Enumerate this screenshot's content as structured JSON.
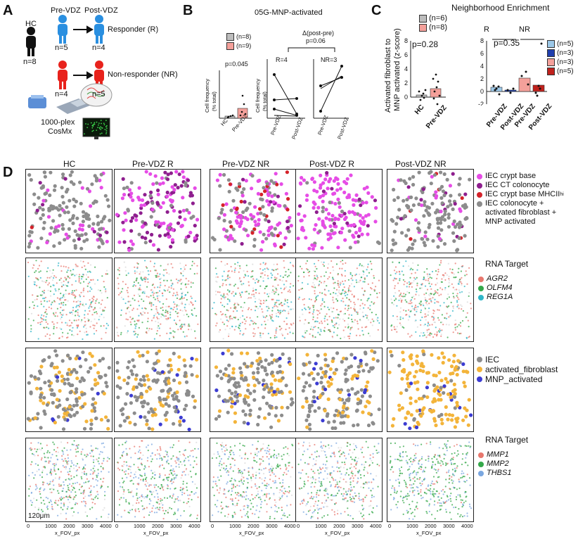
{
  "panelA": {
    "letter": "A",
    "hc": "HC",
    "hc_n": "n=8",
    "pre": "Pre-VDZ",
    "post": "Post-VDZ",
    "pre_r_n": "n=5",
    "post_r_n": "n=4",
    "responder": "Responder (R)",
    "pre_nr_n": "n=4",
    "post_nr_n": "n=5",
    "nonresponder": "Non-responder (NR)",
    "platform1": "1000-plex",
    "platform2": "CosMx"
  },
  "panelB": {
    "letter": "B",
    "title": "05G-MNP-activated",
    "legend": [
      {
        "label": "(n=8)",
        "color": "#bdbdbd"
      },
      {
        "label": "(n=9)",
        "color": "#f4a09a"
      }
    ],
    "pval": "p=0.045",
    "ylabel1": "Cell frequency",
    "ylabel2": "(% total)",
    "delta": "Δ(post-pre)",
    "delta_p": "p=0.06",
    "r_label": "R=4",
    "nr_label": "NR=3",
    "bar_x": [
      "HC",
      "Pre-VDZ"
    ],
    "pair_x": [
      "Pre-VDZ",
      "Post-VDZ"
    ]
  },
  "panelC": {
    "letter": "C",
    "title": "Neighborhood Enrichment",
    "ylabel1": "Activated fibroblast to",
    "ylabel2": "MNP activated (z-score)",
    "legend_left": [
      {
        "label": "(n=6)",
        "color": "#bdbdbd"
      },
      {
        "label": "(n=8)",
        "color": "#f4a09a"
      }
    ],
    "pval_left": "p=0.28",
    "left_x": [
      "HC",
      "Pre-VDZ"
    ],
    "r": "R",
    "nr": "NR",
    "pval_right": "p=0.35",
    "legend_right": [
      {
        "label": "(n=5)",
        "color": "#9cc8e8"
      },
      {
        "label": "(n=3)",
        "color": "#1f3fae"
      },
      {
        "label": "(n=3)",
        "color": "#f4a09a"
      },
      {
        "label": "(n=5)",
        "color": "#c0211c"
      }
    ],
    "right_x": [
      "Pre-VDZ",
      "Post-VDZ",
      "Pre-VDZ",
      "Post-VDZ"
    ],
    "yticks_left": [
      "0",
      "2",
      "4",
      "6",
      "8"
    ],
    "yticks_right": [
      "-2",
      "0",
      "2",
      "4",
      "6",
      "8"
    ]
  },
  "panelD": {
    "letter": "D",
    "columns": [
      "HC",
      "Pre-VDZ R",
      "Pre-VDZ NR",
      "Post-VDZ R",
      "Post-VDZ NR"
    ],
    "legend1": [
      {
        "label": "IEC crypt base",
        "color": "#e64ce6"
      },
      {
        "label": "IEC CT colonocyte",
        "color": "#8e1e8e"
      },
      {
        "label": "IEC crypt base MHCII",
        "sup": "hi",
        "color": "#d4232a"
      },
      {
        "label": "IEC colonocyte +",
        "color": "#8c8c8c"
      },
      {
        "label": "activated fibroblast +",
        "color": ""
      },
      {
        "label": "MNP activated",
        "color": ""
      }
    ],
    "rna1_title": "RNA Target",
    "rna1": [
      {
        "label": "AGR2",
        "color": "#e8776d"
      },
      {
        "label": "OLFM4",
        "color": "#35a84a"
      },
      {
        "label": "REG1A",
        "color": "#2fb6c8"
      }
    ],
    "legend3": [
      {
        "label": "IEC",
        "color": "#8c8c8c"
      },
      {
        "label": "activated_fibroblast",
        "color": "#f3b43a"
      },
      {
        "label": "MNP_activated",
        "color": "#3c3cd2"
      }
    ],
    "rna2_title": "RNA Target",
    "rna2": [
      {
        "label": "MMP1",
        "color": "#e8776d"
      },
      {
        "label": "MMP2",
        "color": "#35a84a"
      },
      {
        "label": "THBS1",
        "color": "#7aa7e0"
      }
    ],
    "scale": "120μm",
    "xticks": [
      "0",
      "1000",
      "2000",
      "3000",
      "4000"
    ],
    "xlabel": "x_FOV_px"
  }
}
